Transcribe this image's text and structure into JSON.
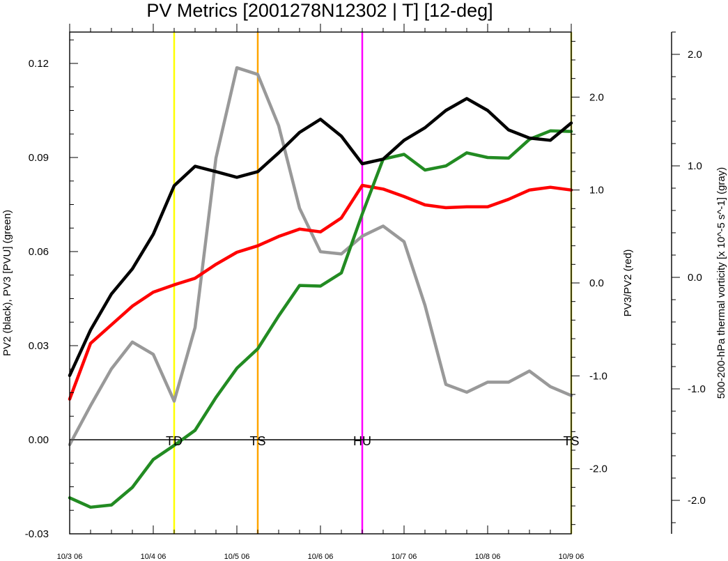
{
  "chart_data": {
    "type": "line",
    "title": "PV Metrics [2001278N12302 | T] [12-deg]",
    "x_tick_labels": [
      "10/3 06",
      "10/4 06",
      "10/5 06",
      "10/6 06",
      "10/7 06",
      "10/8 06",
      "10/9 06"
    ],
    "x_range_days": [
      0,
      6
    ],
    "axes": {
      "left": {
        "label": "PV2 (black), PV3 [PVU] (green)",
        "range": [
          -0.03,
          0.13
        ],
        "ticks": [
          -0.03,
          0.0,
          0.03,
          0.06,
          0.09,
          0.12
        ],
        "tick_labels": [
          "-0.03",
          "0.00",
          "0.03",
          "0.06",
          "0.09",
          "0.12"
        ]
      },
      "right": {
        "label": "PV3/PV2 (red)",
        "range": [
          -2.7,
          2.7
        ],
        "ticks": [
          -2,
          -1,
          0,
          1,
          2
        ],
        "tick_labels": [
          "-2.0",
          "-1.0",
          "0.0",
          "1.0",
          "2.0"
        ]
      },
      "far_right": {
        "label": "500-200-hPa thermal vorticity [x 10^-5 s^-1] (gray)",
        "range": [
          -2.3,
          2.2
        ],
        "ticks": [
          -2,
          -1,
          0,
          1,
          2
        ],
        "tick_labels": [
          "-2.0",
          "-1.0",
          "0.0",
          "1.0",
          "2.0"
        ]
      }
    },
    "series": [
      {
        "color": "#000000",
        "axis": "left",
        "x": [
          0,
          0.25,
          0.5,
          0.75,
          1,
          1.25,
          1.5,
          1.75,
          2,
          2.25,
          2.5,
          2.75,
          3,
          3.25,
          3.5,
          3.75,
          4,
          4.25,
          4.5,
          4.75,
          5,
          5.25,
          5.5,
          5.75,
          6
        ],
        "y": [
          0.0205,
          0.035,
          0.0465,
          0.0545,
          0.0655,
          0.081,
          0.0872,
          0.0855,
          0.0837,
          0.0855,
          0.0915,
          0.098,
          0.1022,
          0.0968,
          0.088,
          0.0895,
          0.0955,
          0.0995,
          0.105,
          0.1088,
          0.105,
          0.0988,
          0.0962,
          0.0955,
          0.101
        ]
      },
      {
        "color": "#228B22",
        "axis": "left",
        "x": [
          0,
          0.25,
          0.5,
          0.75,
          1,
          1.25,
          1.5,
          1.75,
          2,
          2.25,
          2.5,
          2.75,
          3,
          3.25,
          3.5,
          3.75,
          4,
          4.25,
          4.5,
          4.75,
          5,
          5.25,
          5.5,
          5.75,
          6
        ],
        "y": [
          -0.0185,
          -0.0215,
          -0.0208,
          -0.0152,
          -0.0063,
          -0.0018,
          0.003,
          0.0135,
          0.0228,
          0.029,
          0.0395,
          0.0492,
          0.049,
          0.0532,
          0.072,
          0.0895,
          0.091,
          0.086,
          0.0873,
          0.0915,
          0.09,
          0.0898,
          0.0958,
          0.0985,
          0.0983
        ]
      },
      {
        "color": "#ff0000",
        "axis": "right",
        "x": [
          0,
          0.25,
          0.5,
          0.75,
          1,
          1.25,
          1.5,
          1.75,
          2,
          2.25,
          2.5,
          2.75,
          3,
          3.25,
          3.5,
          3.75,
          4,
          4.25,
          4.5,
          4.75,
          5,
          5.25,
          5.5,
          5.75,
          6
        ],
        "y": [
          -1.25,
          -0.65,
          -0.45,
          -0.25,
          -0.1,
          -0.02,
          0.05,
          0.2,
          0.33,
          0.4,
          0.5,
          0.58,
          0.55,
          0.7,
          1.05,
          1.01,
          0.93,
          0.84,
          0.81,
          0.82,
          0.82,
          0.9,
          1.0,
          1.03,
          1.0
        ]
      },
      {
        "color": "#999999",
        "axis": "far_right",
        "x": [
          0,
          0.25,
          0.5,
          0.75,
          1,
          1.25,
          1.5,
          1.75,
          2,
          2.25,
          2.5,
          2.75,
          3,
          3.25,
          3.5,
          3.75,
          4,
          4.25,
          4.5,
          4.75,
          5,
          5.25,
          5.5,
          5.75,
          6
        ],
        "y": [
          -1.5,
          -1.15,
          -0.82,
          -0.58,
          -0.69,
          -1.11,
          -0.45,
          1.07,
          1.88,
          1.82,
          1.36,
          0.62,
          0.23,
          0.21,
          0.37,
          0.46,
          0.32,
          -0.25,
          -0.96,
          -1.03,
          -0.94,
          -0.94,
          -0.84,
          -0.98,
          -1.06
        ]
      }
    ],
    "stage_markers": [
      {
        "label": "TD",
        "x": 1.25,
        "color": "#ffff00"
      },
      {
        "label": "TS",
        "x": 2.25,
        "color": "#ffa500"
      },
      {
        "label": "HU",
        "x": 3.5,
        "color": "#ff00ff"
      },
      {
        "label": "TS",
        "x": 6.0,
        "color": "#d7d71a"
      }
    ],
    "zero_line": 0.0,
    "legend": "none",
    "grid": false
  }
}
